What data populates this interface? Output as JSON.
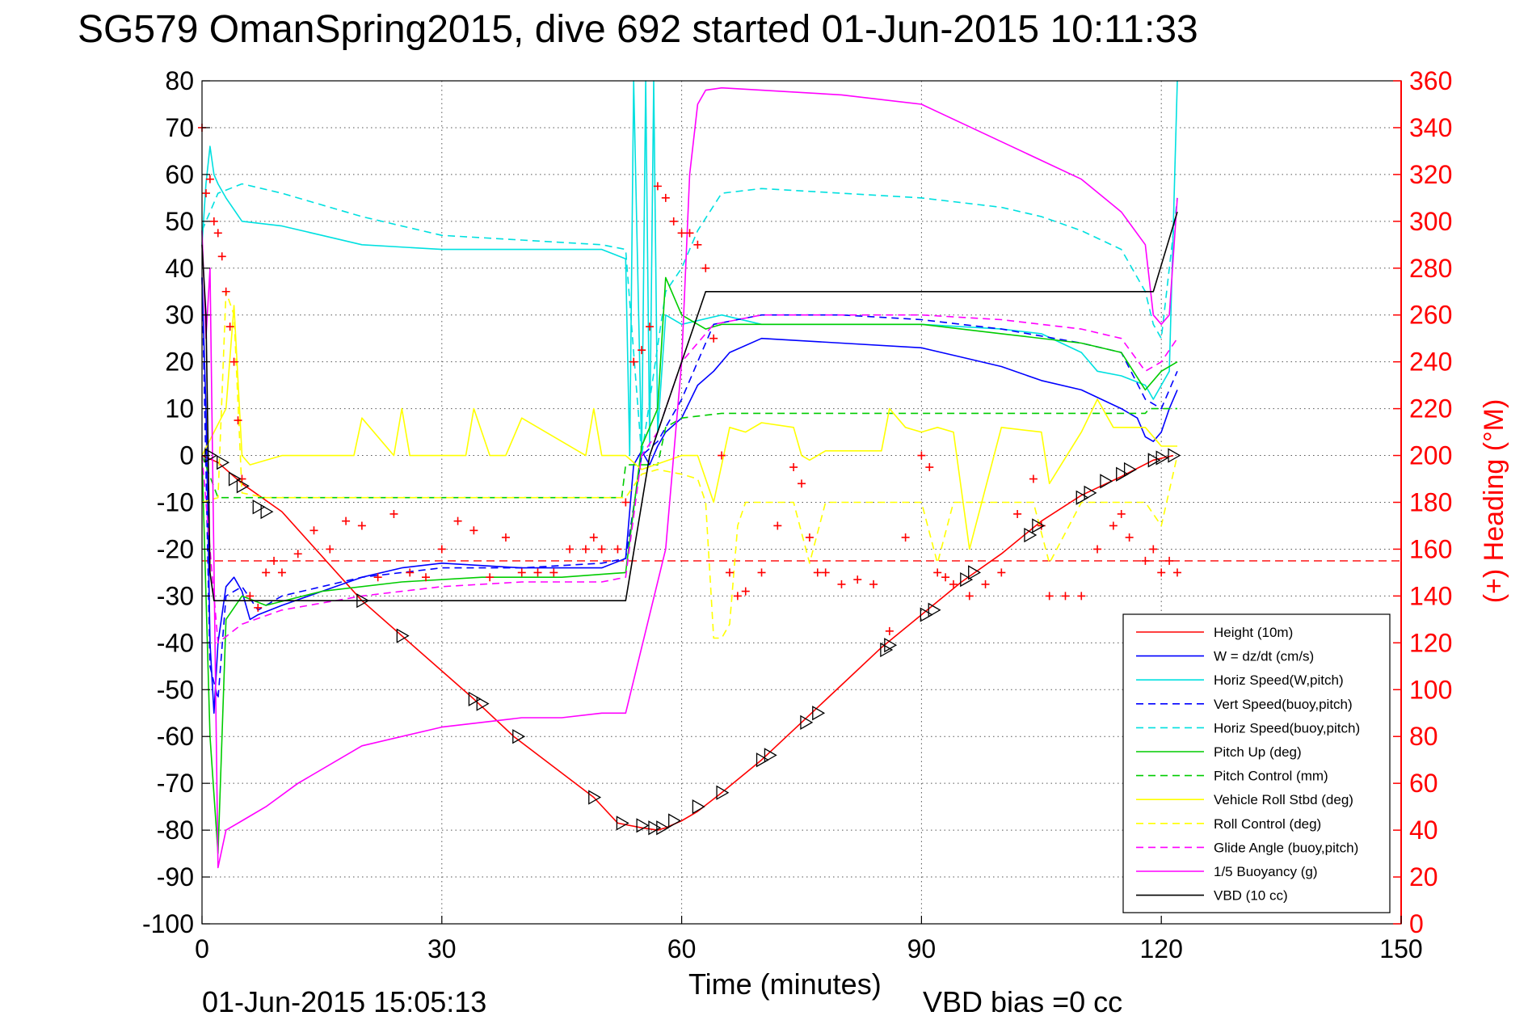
{
  "chart_data": {
    "type": "line",
    "title": "SG579 OmanSpring2015, dive 692 started 01-Jun-2015 10:11:33",
    "xlabel": "Time (minutes)",
    "ylabel_right": "(+) Heading (°M)",
    "footer_left": "01-Jun-2015 15:05:13",
    "footer_right": "VBD bias =0 cc",
    "xlim": [
      0,
      150
    ],
    "ylim": [
      -100,
      80
    ],
    "ylim_right": [
      0,
      360
    ],
    "x_ticks": [
      "0",
      "30",
      "60",
      "90",
      "120",
      "150"
    ],
    "y_ticks_left": [
      "80",
      "70",
      "60",
      "50",
      "40",
      "30",
      "20",
      "10",
      "0",
      "-10",
      "-20",
      "-30",
      "-40",
      "-50",
      "-60",
      "-70",
      "-80",
      "-90",
      "-100"
    ],
    "y_ticks_right": [
      "360",
      "340",
      "320",
      "300",
      "280",
      "260",
      "240",
      "220",
      "200",
      "180",
      "160",
      "140",
      "120",
      "100",
      "80",
      "60",
      "40",
      "20",
      "0"
    ],
    "grid": true,
    "legend_position": "lower-right",
    "heading_reference": 155,
    "series": [
      {
        "name": "Height (10m)",
        "color": "#ff0000",
        "style": "solid",
        "axis": "left",
        "x": [
          0,
          2,
          5,
          10,
          20,
          25,
          34,
          39,
          49,
          52,
          55,
          57,
          58,
          60,
          62,
          65,
          70,
          75,
          80,
          85,
          90,
          95,
          100,
          105,
          110,
          115,
          119,
          121.5
        ],
        "y": [
          0,
          -1.5,
          -6,
          -12,
          -31,
          -38.5,
          -52,
          -60,
          -73,
          -78.5,
          -79.5,
          -80,
          -79.5,
          -78,
          -76,
          -72,
          -65,
          -57,
          -49,
          -41,
          -34,
          -27,
          -21,
          -14,
          -8.5,
          -4.5,
          -1,
          0
        ]
      },
      {
        "name": "W = dz/dt (cm/s)",
        "color": "#0000ff",
        "style": "solid",
        "axis": "left",
        "x": [
          0,
          0.5,
          1,
          1.5,
          2,
          3,
          4,
          5,
          6,
          7,
          10,
          15,
          20,
          25,
          30,
          40,
          50,
          53,
          54,
          55,
          56,
          57,
          58,
          60,
          62,
          64,
          66,
          70,
          80,
          90,
          95,
          100,
          105,
          110,
          115,
          117,
          118,
          119,
          120,
          121,
          122
        ],
        "y": [
          38,
          10,
          -40,
          -55,
          -40,
          -28,
          -26,
          -29,
          -35,
          -34,
          -32,
          -29,
          -26,
          -24,
          -23,
          -24,
          -24,
          -22,
          -2,
          1,
          -2,
          2,
          5,
          8,
          15,
          18,
          22,
          25,
          24,
          23,
          21,
          19,
          16,
          14,
          10,
          8,
          4,
          3,
          5,
          10,
          14
        ]
      },
      {
        "name": "Horiz Speed(W,pitch)",
        "color": "#00e0e0",
        "style": "solid",
        "axis": "left",
        "x": [
          0,
          0.5,
          1,
          1.5,
          2,
          3,
          5,
          10,
          15,
          20,
          30,
          40,
          50,
          53,
          53.5,
          54,
          55,
          55.5,
          56,
          56.5,
          57,
          58,
          60,
          65,
          70,
          80,
          90,
          100,
          105,
          110,
          112,
          115,
          118,
          119,
          120,
          121,
          122
        ],
        "y": [
          45,
          58,
          66,
          60,
          58,
          55,
          50,
          49,
          47,
          45,
          44,
          44,
          44,
          42,
          0,
          80,
          0,
          80,
          2,
          80,
          5,
          30,
          28,
          30,
          28,
          28,
          28,
          27,
          26,
          22,
          18,
          17,
          15,
          12,
          15,
          18,
          80
        ]
      },
      {
        "name": "Vert Speed(buoy,pitch)",
        "color": "#0000ff",
        "style": "dashed",
        "axis": "left",
        "x": [
          0,
          1,
          2,
          3,
          5,
          7,
          10,
          20,
          30,
          40,
          50,
          53,
          55,
          57,
          60,
          64,
          70,
          80,
          90,
          100,
          110,
          115,
          118,
          120,
          121,
          122
        ],
        "y": [
          38,
          -45,
          -52,
          -30,
          -28,
          -33,
          -30,
          -26,
          -24,
          -24,
          -23,
          -22,
          0,
          3,
          12,
          28,
          30,
          30,
          29,
          27,
          24,
          22,
          12,
          10,
          14,
          18
        ]
      },
      {
        "name": "Horiz Speed(buoy,pitch)",
        "color": "#00e0e0",
        "style": "dashed",
        "axis": "left",
        "x": [
          0,
          2,
          5,
          10,
          20,
          30,
          40,
          50,
          53,
          55,
          58,
          60,
          62,
          65,
          70,
          80,
          90,
          100,
          105,
          110,
          115,
          118,
          119,
          120,
          122
        ],
        "y": [
          48,
          56,
          58,
          56,
          51,
          47,
          46,
          45,
          44,
          0,
          35,
          40,
          48,
          56,
          57,
          56,
          55,
          53,
          51,
          48,
          44,
          35,
          28,
          25,
          55
        ]
      },
      {
        "name": "Pitch Up (deg)",
        "color": "#00cc00",
        "style": "solid",
        "axis": "left",
        "x": [
          0,
          1,
          2,
          3,
          5,
          8,
          15,
          25,
          35,
          45,
          53,
          55,
          57,
          58,
          60,
          63,
          65,
          70,
          80,
          90,
          100,
          110,
          115,
          118,
          120,
          122
        ],
        "y": [
          0,
          -60,
          -85,
          -35,
          -30,
          -32,
          -29,
          -27,
          -26,
          -26,
          -25,
          2,
          10,
          38,
          30,
          27,
          28,
          28,
          28,
          28,
          26,
          24,
          22,
          14,
          18,
          20
        ]
      },
      {
        "name": "Pitch Control (mm)",
        "color": "#00cc00",
        "style": "dashed",
        "axis": "left",
        "x": [
          0,
          2,
          5,
          8,
          52.5,
          53,
          57,
          58,
          60,
          65,
          70,
          90,
          110,
          118,
          118.5,
          122
        ],
        "y": [
          0,
          -9,
          -9,
          -9,
          -9,
          -2,
          -2,
          6,
          8,
          9,
          9,
          9,
          9,
          9,
          10,
          10
        ]
      },
      {
        "name": "Vehicle Roll Stbd (deg)",
        "color": "#ffff00",
        "style": "solid",
        "axis": "left",
        "x": [
          0,
          3,
          4,
          5,
          6,
          10,
          19,
          20,
          24,
          25,
          26,
          33,
          34,
          36,
          38,
          40,
          48,
          49,
          50,
          53,
          55,
          60,
          62,
          64,
          66,
          68,
          70,
          74,
          75,
          76,
          78,
          85,
          86,
          88,
          90,
          92,
          94,
          96,
          100,
          105,
          106,
          110,
          112,
          114,
          118,
          120,
          122
        ],
        "y": [
          0,
          10,
          32,
          0,
          -2,
          0,
          0,
          8,
          0,
          10,
          0,
          0,
          10,
          0,
          0,
          8,
          0,
          10,
          0,
          0,
          -3,
          0,
          0,
          -10,
          6,
          5,
          7,
          6,
          0,
          -1,
          1,
          1,
          10,
          6,
          5,
          6,
          5,
          -20,
          6,
          5,
          -6,
          5,
          12,
          6,
          6,
          2,
          2
        ]
      },
      {
        "name": "Roll Control (deg)",
        "color": "#ffff00",
        "style": "dashed",
        "axis": "left",
        "x": [
          0,
          2,
          3,
          4,
          5,
          8,
          53,
          55,
          57,
          60,
          62,
          63,
          64,
          65,
          66,
          67,
          68,
          70,
          74,
          76,
          78,
          90,
          92,
          94,
          96,
          100,
          104,
          106,
          110,
          115,
          118,
          120,
          122
        ],
        "y": [
          -10,
          -9,
          35,
          30,
          -8,
          -9,
          -9,
          -4,
          -3,
          -4,
          -5,
          -10,
          -39,
          -39,
          -36,
          -15,
          -10,
          -10,
          -10,
          -23,
          -10,
          -10,
          -23,
          -10,
          -10,
          -10,
          -10,
          -23,
          -10,
          -10,
          -10,
          -15,
          0
        ]
      },
      {
        "name": "Glide Angle (buoy,pitch)",
        "color": "#ff00ff",
        "style": "dashed",
        "axis": "left",
        "x": [
          0,
          2,
          5,
          10,
          20,
          30,
          40,
          50,
          53,
          55,
          57,
          60,
          64,
          70,
          80,
          90,
          100,
          110,
          115,
          118,
          120,
          122
        ],
        "y": [
          0,
          -40,
          -36,
          -33,
          -30,
          -28,
          -27,
          -27,
          -26,
          0,
          5,
          20,
          28,
          30,
          30,
          30,
          29,
          27,
          25,
          18,
          20,
          25
        ]
      },
      {
        "name": "1/5 Buoyancy (g)",
        "color": "#ff00ff",
        "style": "solid",
        "axis": "left",
        "x": [
          0,
          0.5,
          1,
          2,
          3,
          5,
          8,
          12,
          20,
          30,
          40,
          45,
          50,
          53,
          58,
          60,
          61,
          62,
          63,
          65,
          70,
          80,
          90,
          100,
          110,
          115,
          118,
          119,
          120,
          121,
          122
        ],
        "y": [
          48,
          25,
          40,
          -88,
          -80,
          -78,
          -75,
          -70,
          -62,
          -58,
          -56,
          -56,
          -55,
          -55,
          -20,
          20,
          60,
          75,
          78,
          78.5,
          78,
          77,
          75,
          67,
          59,
          52,
          45,
          30,
          28,
          30,
          55
        ]
      },
      {
        "name": "VBD (10 cc)",
        "color": "#000000",
        "style": "solid",
        "axis": "left",
        "x": [
          0,
          0.5,
          1,
          1.5,
          2,
          3,
          5,
          53,
          56,
          60,
          63,
          64,
          118,
          119,
          122
        ],
        "y": [
          45,
          30,
          -25,
          -31,
          -31,
          -31,
          -31,
          -31,
          0,
          20,
          35,
          35,
          35,
          35,
          52
        ]
      }
    ],
    "heading_points": {
      "name": "(+) Heading",
      "color": "#ff0000",
      "axis": "right",
      "x": [
        0,
        0.5,
        1,
        1.5,
        2,
        2.5,
        3,
        3.5,
        4,
        4.5,
        5,
        6,
        7,
        8,
        9,
        10,
        12,
        14,
        16,
        18,
        20,
        22,
        24,
        26,
        28,
        30,
        32,
        34,
        36,
        38,
        40,
        42,
        44,
        46,
        48,
        49,
        50,
        52,
        53,
        54,
        55,
        56,
        57,
        58,
        59,
        60,
        61,
        62,
        63,
        64,
        65,
        66,
        67,
        68,
        70,
        72,
        74,
        75,
        76,
        77,
        78,
        80,
        82,
        84,
        86,
        88,
        90,
        91,
        92,
        93,
        94,
        96,
        98,
        100,
        102,
        104,
        105,
        106,
        108,
        110,
        112,
        114,
        115,
        116,
        118,
        119,
        120,
        121,
        122
      ],
      "y": [
        340,
        312,
        318,
        300,
        295,
        285,
        270,
        255,
        240,
        215,
        190,
        140,
        135,
        150,
        155,
        150,
        158,
        168,
        160,
        172,
        170,
        148,
        175,
        150,
        148,
        160,
        172,
        168,
        148,
        165,
        150,
        150,
        150,
        160,
        160,
        165,
        160,
        160,
        180,
        240,
        245,
        255,
        315,
        310,
        300,
        295,
        295,
        290,
        280,
        250,
        200,
        150,
        140,
        142,
        150,
        170,
        195,
        188,
        165,
        150,
        150,
        145,
        147,
        145,
        125,
        165,
        200,
        195,
        150,
        148,
        145,
        140,
        145,
        150,
        175,
        190,
        170,
        140,
        140,
        140,
        160,
        170,
        175,
        165,
        155,
        160,
        150,
        155,
        150
      ]
    },
    "depth_markers": {
      "x": [
        1,
        2.5,
        4,
        5,
        7,
        8,
        20,
        25,
        34,
        35,
        39.5,
        49,
        52.5,
        55,
        56.5,
        57.5,
        59,
        62,
        65,
        70,
        71,
        75.5,
        77,
        85.5,
        86,
        90.5,
        91.5,
        95.5,
        96.5,
        103.5,
        104.5,
        110,
        111,
        113,
        115,
        116,
        119,
        120,
        121.5
      ],
      "y": [
        0,
        -1.5,
        -5,
        -6.5,
        -11,
        -12,
        -31,
        -38.5,
        -52,
        -53,
        -60,
        -73,
        -78.5,
        -79,
        -79.5,
        -79.5,
        -78,
        -75,
        -72,
        -65,
        -64,
        -57,
        -55,
        -41.5,
        -40.5,
        -34,
        -33,
        -26.5,
        -25,
        -17,
        -15,
        -9,
        -8,
        -5.5,
        -4,
        -3,
        -1,
        -0.5,
        0
      ]
    }
  }
}
